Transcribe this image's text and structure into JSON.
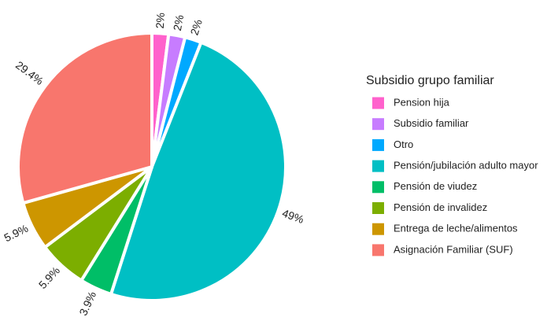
{
  "chart_data": {
    "type": "pie",
    "legend_title": "Subsidio grupo familiar",
    "categories": [
      "Pension hija",
      "Subsidio familiar",
      "Otro",
      "Pensión/jubilación adulto mayor",
      "Pensión de viudez",
      "Pensión de invalidez",
      "Entrega de leche/alimentos",
      "Asignación Familiar (SUF)"
    ],
    "values": [
      2,
      2,
      2,
      49,
      3.9,
      5.9,
      5.9,
      29.4
    ],
    "value_labels": [
      "2%",
      "2%",
      "2%",
      "49%",
      "3.9%",
      "5.9%",
      "5.9%",
      "29.4%"
    ],
    "colors": [
      "#FF61CC",
      "#C77CFF",
      "#00A9FF",
      "#00BFC4",
      "#00BE67",
      "#7CAE00",
      "#CD9600",
      "#F8766D"
    ],
    "legend": "right"
  }
}
